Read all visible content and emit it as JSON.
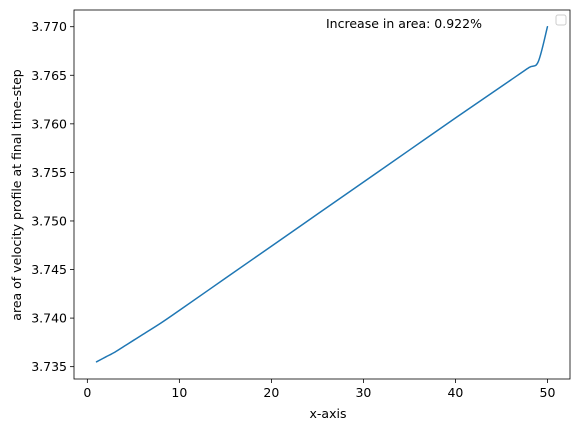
{
  "chart_data": {
    "type": "line",
    "xlabel": "x-axis",
    "ylabel": "area of velocity profile at final time-step",
    "annotation": "Increase in area: 0.922%",
    "xlim": [
      -1.45,
      52.45
    ],
    "ylim": [
      3.73373,
      3.77172
    ],
    "xticks": [
      0,
      10,
      20,
      30,
      40,
      50
    ],
    "xtick_labels": [
      "0",
      "10",
      "20",
      "30",
      "40",
      "50"
    ],
    "yticks": [
      3.735,
      3.74,
      3.745,
      3.75,
      3.755,
      3.76,
      3.765,
      3.77
    ],
    "ytick_labels": [
      "3.735",
      "3.740",
      "3.745",
      "3.750",
      "3.755",
      "3.760",
      "3.765",
      "3.770"
    ],
    "grid": false,
    "legend": "top-right (empty)",
    "colors": {
      "line": "#1f77b4"
    },
    "series": [
      {
        "x": [
          1,
          2,
          3,
          4,
          5,
          6,
          8,
          10,
          15,
          20,
          25,
          30,
          35,
          40,
          44,
          46,
          48,
          49,
          50
        ],
        "values": [
          3.7355,
          3.736,
          3.7365,
          3.7371,
          3.7377,
          3.7383,
          3.7395,
          3.7408,
          3.7441,
          3.7474,
          3.7507,
          3.754,
          3.7573,
          3.7606,
          3.7632,
          3.7645,
          3.7658,
          3.7664,
          3.77
        ]
      }
    ]
  }
}
